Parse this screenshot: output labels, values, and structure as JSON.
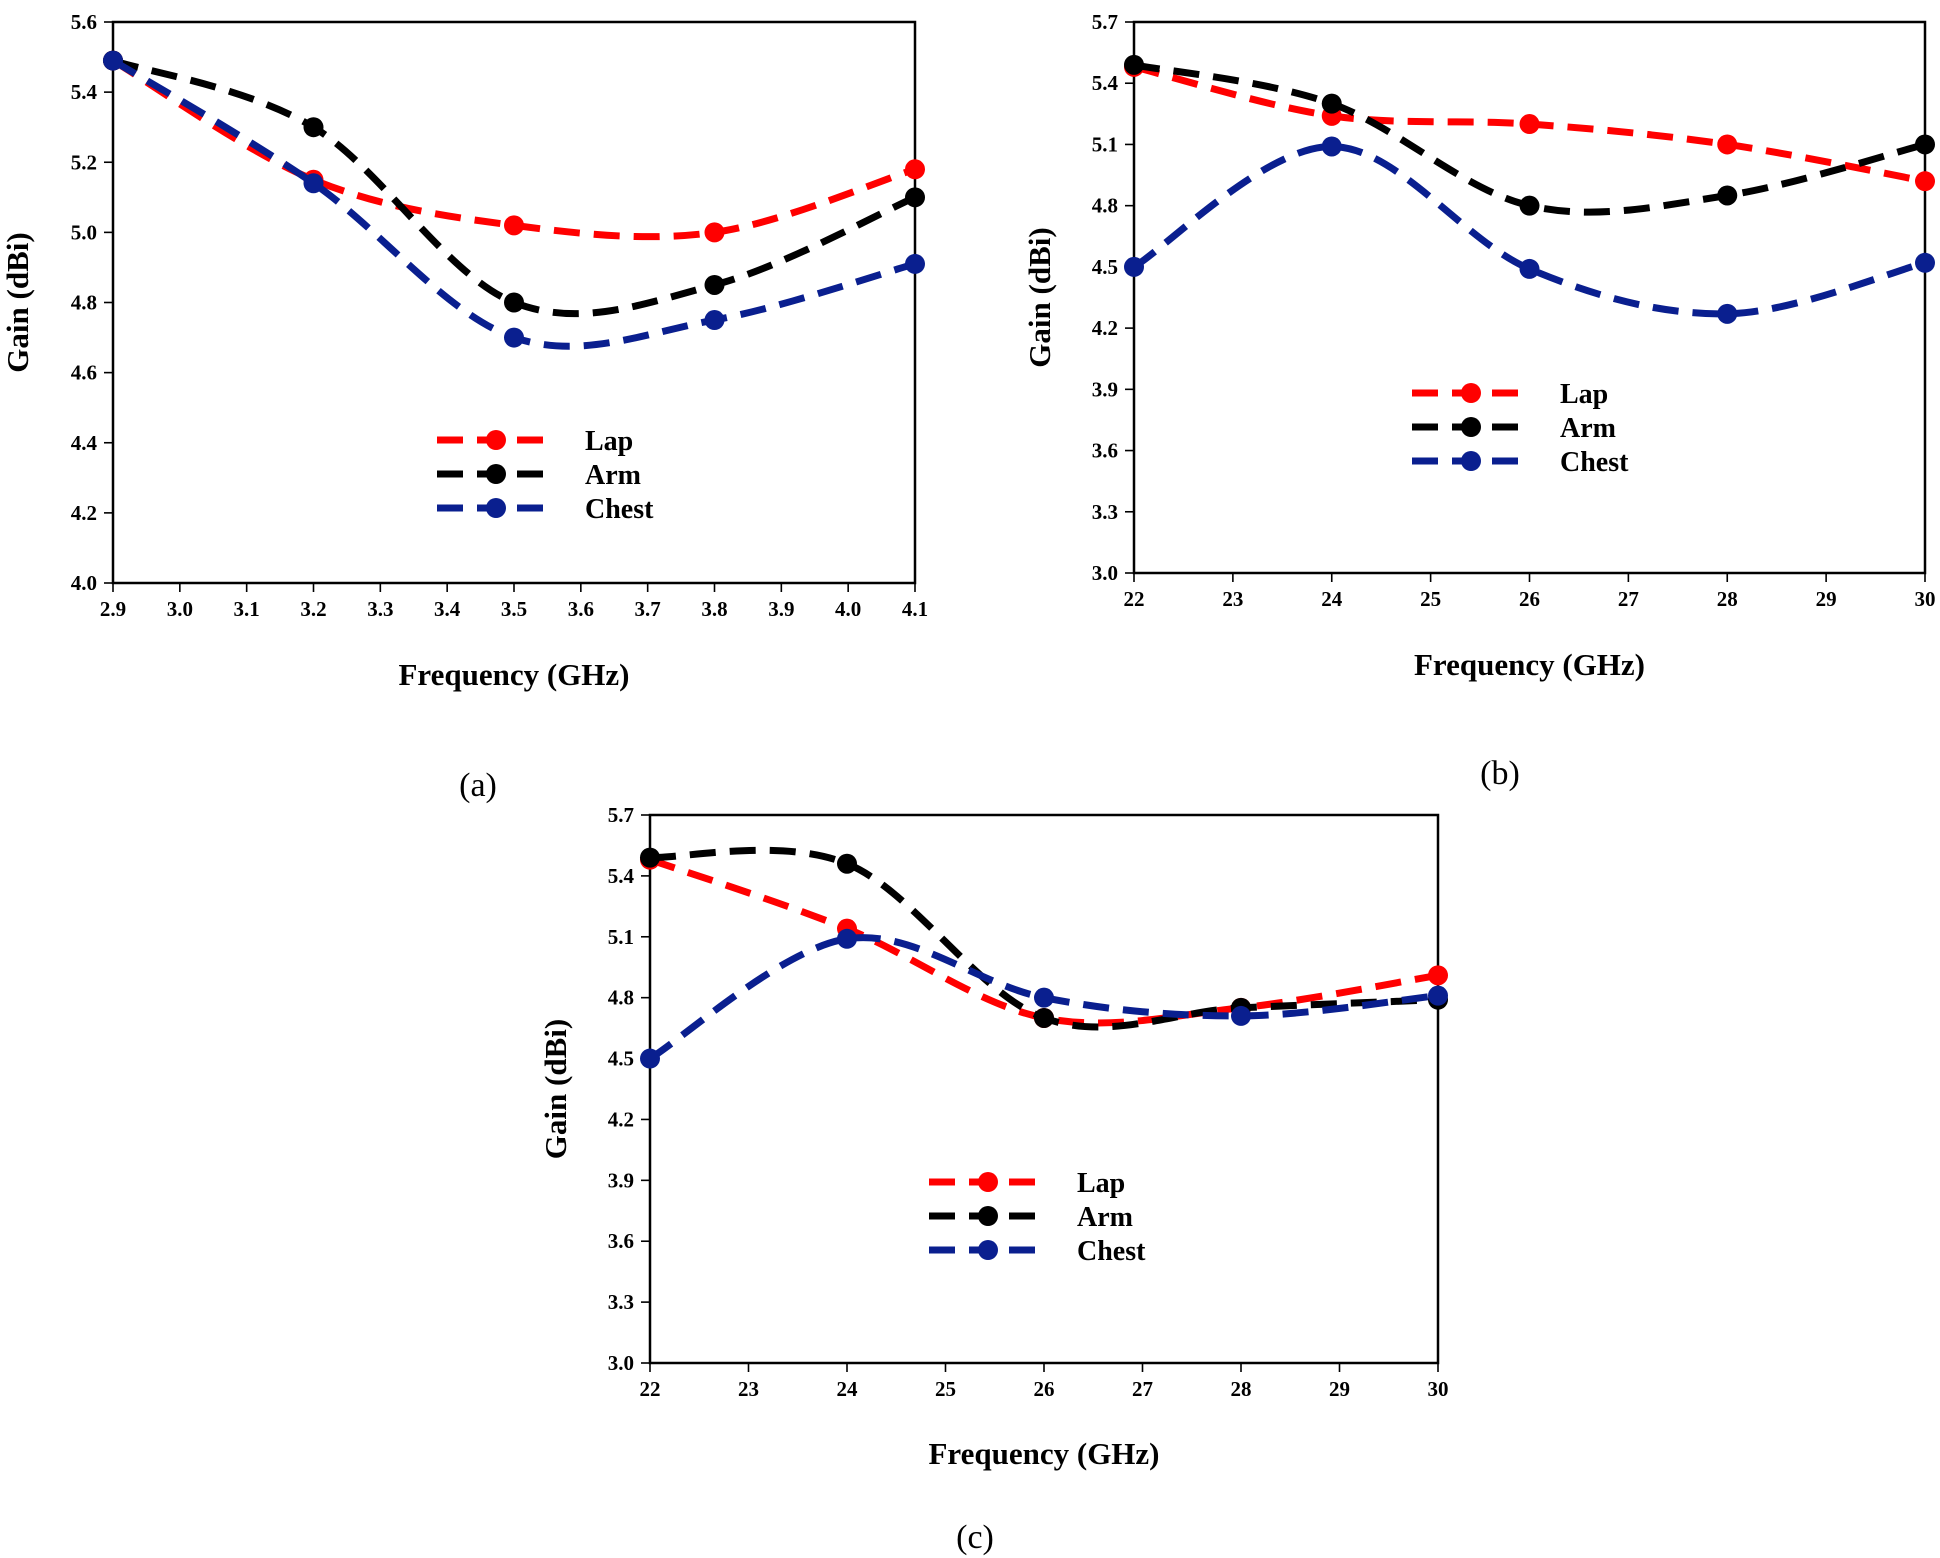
{
  "figure": {
    "panel_labels": [
      "(a)",
      "(b)",
      "(c)"
    ]
  },
  "colors": {
    "lap": "#ff0000",
    "arm": "#000000",
    "chest": "#0a1f8f"
  },
  "chart_data": [
    {
      "type": "line",
      "panel": "(a)",
      "xlabel": "Frequency (GHz)",
      "ylabel": "Gain (dBi)",
      "xlim": [
        2.9,
        4.1
      ],
      "ylim": [
        4.0,
        5.6
      ],
      "xticks": [
        "2.9",
        "3.0",
        "3.1",
        "3.2",
        "3.3",
        "3.4",
        "3.5",
        "3.6",
        "3.7",
        "3.8",
        "3.9",
        "4.0",
        "4.1"
      ],
      "yticks": [
        "4.0",
        "4.2",
        "4.4",
        "4.6",
        "4.8",
        "5.0",
        "5.2",
        "5.4",
        "5.6"
      ],
      "legend": [
        "Lap",
        "Arm",
        "Chest"
      ],
      "legend_position": "lower-center",
      "series": [
        {
          "name": "Lap",
          "x": [
            2.9,
            3.2,
            3.5,
            3.8,
            4.1
          ],
          "values": [
            5.49,
            5.15,
            5.02,
            5.0,
            5.18
          ]
        },
        {
          "name": "Arm",
          "x": [
            2.9,
            3.2,
            3.5,
            3.8,
            4.1
          ],
          "values": [
            5.49,
            5.3,
            4.8,
            4.85,
            5.1
          ]
        },
        {
          "name": "Chest",
          "x": [
            2.9,
            3.2,
            3.5,
            3.8,
            4.1
          ],
          "values": [
            5.49,
            5.14,
            4.7,
            4.75,
            4.91
          ]
        }
      ]
    },
    {
      "type": "line",
      "panel": "(b)",
      "xlabel": "Frequency (GHz)",
      "ylabel": "Gain (dBi)",
      "xlim": [
        22,
        30
      ],
      "ylim": [
        3.0,
        5.7
      ],
      "xticks": [
        "22",
        "23",
        "24",
        "25",
        "26",
        "27",
        "28",
        "29",
        "30"
      ],
      "yticks": [
        "3.0",
        "3.3",
        "3.6",
        "3.9",
        "4.2",
        "4.5",
        "4.8",
        "5.1",
        "5.4",
        "5.7"
      ],
      "legend": [
        "Lap",
        "Arm",
        "Chest"
      ],
      "legend_position": "center",
      "series": [
        {
          "name": "Lap",
          "x": [
            22,
            24,
            26,
            28,
            30
          ],
          "values": [
            5.48,
            5.24,
            5.2,
            5.1,
            4.92
          ]
        },
        {
          "name": "Arm",
          "x": [
            22,
            24,
            26,
            28,
            30
          ],
          "values": [
            5.49,
            5.3,
            4.8,
            4.85,
            5.1
          ]
        },
        {
          "name": "Chest",
          "x": [
            22,
            24,
            26,
            28,
            30
          ],
          "values": [
            4.5,
            5.09,
            4.49,
            4.27,
            4.52
          ]
        }
      ]
    },
    {
      "type": "line",
      "panel": "(c)",
      "xlabel": "Frequency (GHz)",
      "ylabel": "Gain (dBi)",
      "xlim": [
        22,
        30
      ],
      "ylim": [
        3.0,
        5.7
      ],
      "xticks": [
        "22",
        "23",
        "24",
        "25",
        "26",
        "27",
        "28",
        "29",
        "30"
      ],
      "yticks": [
        "3.0",
        "3.3",
        "3.6",
        "3.9",
        "4.2",
        "4.5",
        "4.8",
        "5.1",
        "5.4",
        "5.7"
      ],
      "legend": [
        "Lap",
        "Arm",
        "Chest"
      ],
      "legend_position": "center",
      "series": [
        {
          "name": "Lap",
          "x": [
            22,
            24,
            26,
            28,
            30
          ],
          "values": [
            5.48,
            5.14,
            4.7,
            4.75,
            4.91
          ]
        },
        {
          "name": "Arm",
          "x": [
            22,
            24,
            26,
            28,
            30
          ],
          "values": [
            5.49,
            5.46,
            4.7,
            4.75,
            4.79
          ]
        },
        {
          "name": "Chest",
          "x": [
            22,
            24,
            26,
            28,
            30
          ],
          "values": [
            4.5,
            5.09,
            4.8,
            4.71,
            4.81
          ]
        }
      ]
    }
  ]
}
